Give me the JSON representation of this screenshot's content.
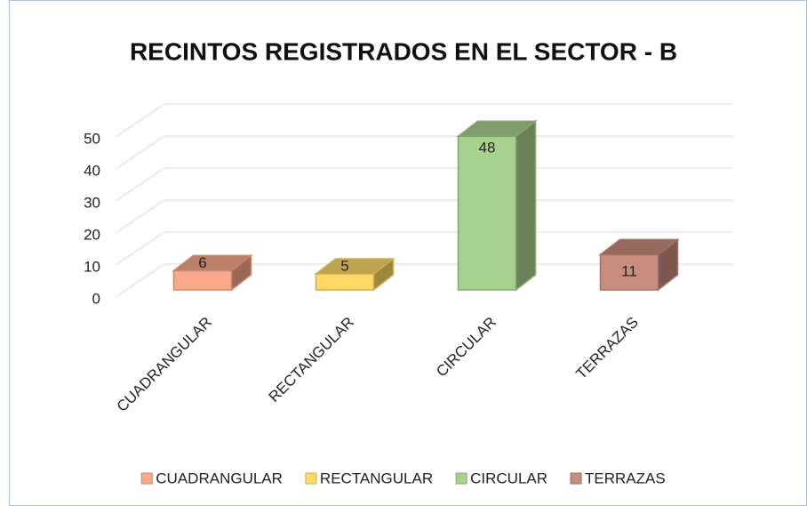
{
  "chart_data": {
    "type": "bar3d",
    "title": "RECINTOS REGISTRADOS EN EL SECTOR - B",
    "categories": [
      "CUADRANGULAR",
      "RECTANGULAR",
      "CIRCULAR",
      "TERRAZAS"
    ],
    "values": [
      6,
      5,
      48,
      11
    ],
    "colors": [
      "#f9a98a",
      "#ffd966",
      "#a9d18e",
      "#c98d80"
    ],
    "ylim": [
      0,
      50
    ],
    "yticks": [
      0,
      10,
      20,
      30,
      40,
      50
    ],
    "grid": true,
    "legend": "bottom"
  }
}
